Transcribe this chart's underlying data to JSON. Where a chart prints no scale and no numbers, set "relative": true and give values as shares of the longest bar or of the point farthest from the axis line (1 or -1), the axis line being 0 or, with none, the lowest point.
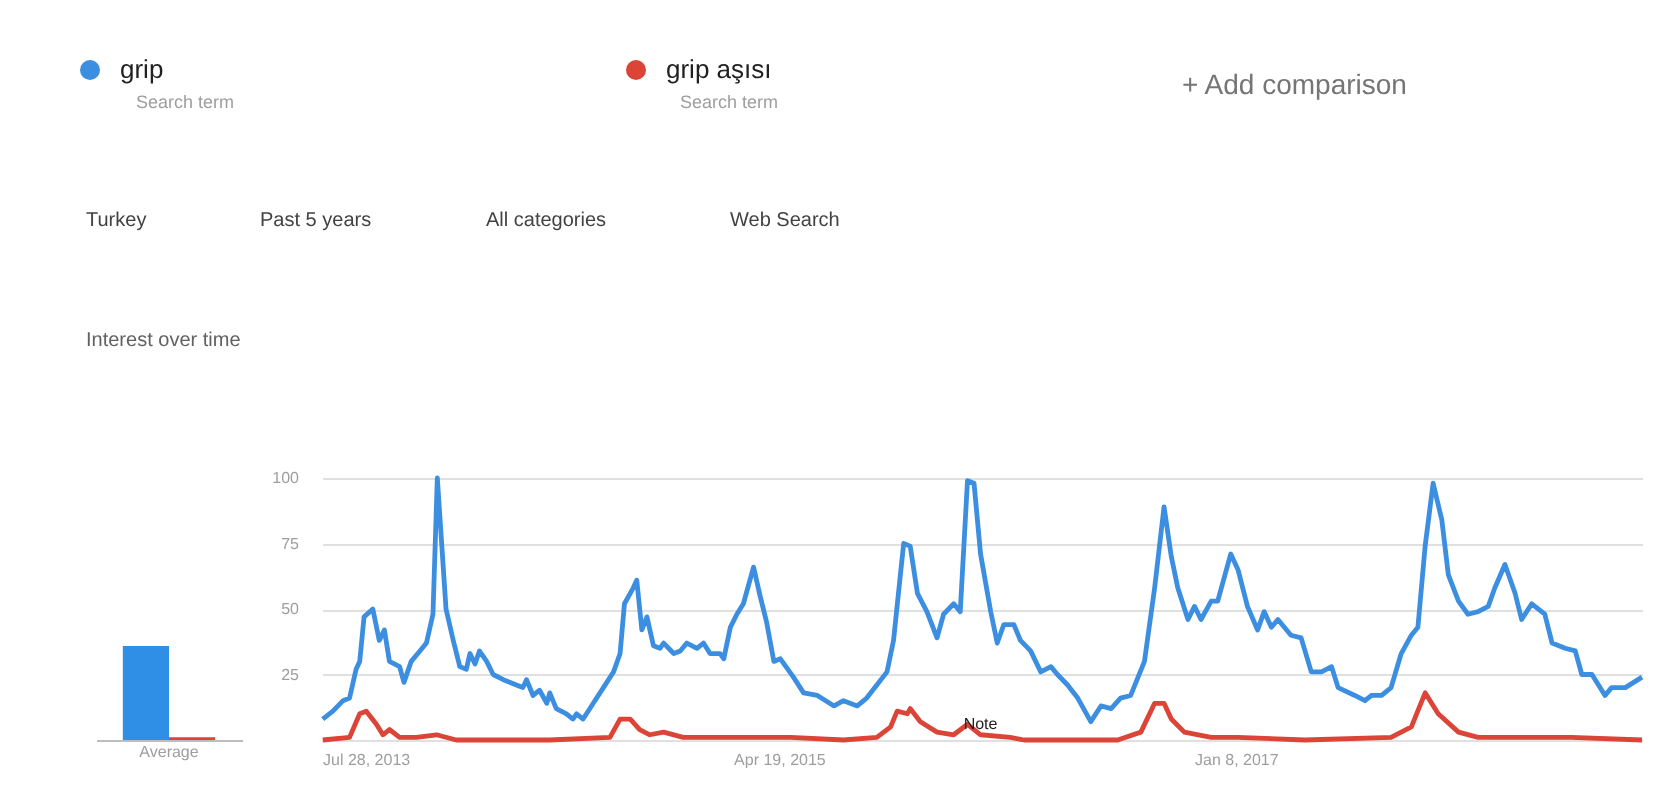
{
  "chart_data": [
    {
      "type": "bar",
      "relative": true,
      "categories": [
        "Average"
      ],
      "series": [
        {
          "color": "#2f8fe6",
          "values": [
            1
          ]
        },
        {
          "color": "#db4437",
          "values": [
            0.03
          ]
        }
      ]
    },
    {
      "type": "line",
      "title": "Interest over time",
      "legend": "top",
      "grid": "y",
      "marker": "none",
      "line_style": "solid",
      "xlim": [
        "2013-07-28",
        "2018-07-22"
      ],
      "xticks": [
        {
          "value": "2013-07-28",
          "label": "Jul 28, 2013"
        },
        {
          "value": "2015-04-19",
          "label": "Apr 19, 2015"
        },
        {
          "value": "2017-01-08",
          "label": "Jan 8, 2017"
        }
      ],
      "ylim": [
        0,
        100
      ],
      "yticks": [
        {
          "value": 0,
          "label": null
        },
        25,
        50,
        75,
        100
      ],
      "annotations": [
        "Search term",
        "Search term",
        "+ Add comparison",
        "Turkey",
        "Past 5 years",
        "All categories",
        "Web Search",
        {
          "text": "Note",
          "x": "2016-01-22",
          "y": 2
        }
      ],
      "series": [
        {
          "name": "grip",
          "color": "#3b8ee0",
          "x": [
            "2013-07-29",
            "2013-08-12",
            "2013-08-26",
            "2013-09-04",
            "2013-09-13",
            "2013-09-18",
            "2013-09-24",
            "2013-10-06",
            "2013-10-15",
            "2013-10-22",
            "2013-10-29",
            "2013-11-12",
            "2013-11-18",
            "2013-11-28",
            "2013-12-10",
            "2013-12-19",
            "2013-12-28",
            "2014-01-03",
            "2014-01-15",
            "2014-01-25",
            "2014-02-03",
            "2014-02-12",
            "2014-02-17",
            "2014-02-24",
            "2014-03-02",
            "2014-03-12",
            "2014-03-21",
            "2014-04-04",
            "2014-04-22",
            "2014-05-01",
            "2014-05-06",
            "2014-05-15",
            "2014-05-24",
            "2014-06-03",
            "2014-06-07",
            "2014-06-16",
            "2014-06-30",
            "2014-07-09",
            "2014-07-14",
            "2014-07-23",
            "2014-08-06",
            "2014-08-20",
            "2014-09-03",
            "2014-09-12",
            "2014-09-18",
            "2014-09-30",
            "2014-10-05",
            "2014-10-12",
            "2014-10-19",
            "2014-10-28",
            "2014-11-06",
            "2014-11-11",
            "2014-11-25",
            "2014-12-04",
            "2014-12-13",
            "2014-12-27",
            "2015-01-05",
            "2015-01-14",
            "2015-01-28",
            "2015-02-02",
            "2015-02-11",
            "2015-02-20",
            "2015-03-01",
            "2015-03-15",
            "2015-03-24",
            "2015-04-02",
            "2015-04-12",
            "2015-04-21",
            "2015-05-09",
            "2015-05-23",
            "2015-06-11",
            "2015-07-04",
            "2015-07-17",
            "2015-08-05",
            "2015-08-18",
            "2015-09-01",
            "2015-09-15",
            "2015-09-24",
            "2015-10-08",
            "2015-10-17",
            "2015-10-27",
            "2015-11-09",
            "2015-11-23",
            "2015-12-02",
            "2015-12-16",
            "2015-12-25",
            "2016-01-04",
            "2016-01-13",
            "2016-01-22",
            "2016-02-05",
            "2016-02-14",
            "2016-02-23",
            "2016-03-08",
            "2016-03-17",
            "2016-03-31",
            "2016-04-14",
            "2016-04-28",
            "2016-05-07",
            "2016-05-21",
            "2016-06-04",
            "2016-06-22",
            "2016-07-06",
            "2016-07-20",
            "2016-08-02",
            "2016-08-16",
            "2016-09-04",
            "2016-09-18",
            "2016-10-01",
            "2016-10-11",
            "2016-10-20",
            "2016-11-03",
            "2016-11-12",
            "2016-11-21",
            "2016-12-05",
            "2016-12-14",
            "2017-01-01",
            "2017-01-11",
            "2017-01-24",
            "2017-02-07",
            "2017-02-16",
            "2017-02-26",
            "2017-03-07",
            "2017-03-25",
            "2017-04-08",
            "2017-04-22",
            "2017-05-06",
            "2017-05-20",
            "2017-05-29",
            "2017-06-21",
            "2017-07-05",
            "2017-07-14",
            "2017-07-28",
            "2017-08-10",
            "2017-08-24",
            "2017-09-07",
            "2017-09-16",
            "2017-09-26",
            "2017-10-07",
            "2017-10-19",
            "2017-10-28",
            "2017-11-11",
            "2017-11-24",
            "2017-12-08",
            "2017-12-22",
            "2017-12-31",
            "2018-01-14",
            "2018-01-28",
            "2018-02-06",
            "2018-02-20",
            "2018-03-10",
            "2018-03-20",
            "2018-04-07",
            "2018-04-21",
            "2018-04-30",
            "2018-05-14",
            "2018-06-01",
            "2018-06-10",
            "2018-06-29",
            "2018-07-22"
          ],
          "values": [
            8,
            11,
            15,
            16,
            27,
            30,
            47,
            50,
            38,
            42,
            30,
            28,
            22,
            30,
            34,
            37,
            48,
            100,
            50,
            38,
            28,
            27,
            33,
            29,
            34,
            30,
            25,
            23,
            21,
            20,
            23,
            17,
            19,
            14,
            18,
            12,
            10,
            8,
            10,
            8,
            14,
            20,
            26,
            33,
            52,
            58,
            61,
            42,
            47,
            36,
            35,
            37,
            33,
            34,
            37,
            35,
            37,
            33,
            33,
            31,
            43,
            48,
            52,
            66,
            55,
            45,
            30,
            31,
            24,
            18,
            17,
            13,
            15,
            13,
            16,
            21,
            26,
            38,
            75,
            74,
            56,
            49,
            39,
            48,
            52,
            49,
            99,
            98,
            71,
            49,
            37,
            44,
            44,
            38,
            34,
            26,
            28,
            25,
            21,
            16,
            7,
            13,
            12,
            16,
            17,
            30,
            58,
            89,
            70,
            58,
            46,
            51,
            46,
            53,
            53,
            71,
            65,
            51,
            42,
            49,
            43,
            46,
            40,
            39,
            26,
            26,
            28,
            20,
            17,
            15,
            17,
            17,
            20,
            33,
            40,
            43,
            74,
            98,
            84,
            63,
            53,
            48,
            49,
            51,
            58,
            67,
            56,
            46,
            52,
            48,
            37,
            35,
            34,
            25,
            25,
            17,
            20,
            20,
            24
          ]
        },
        {
          "name": "grip aşısı",
          "color": "#db4437",
          "x": [
            "2013-07-29",
            "2013-09-04",
            "2013-09-18",
            "2013-09-27",
            "2013-10-11",
            "2013-10-20",
            "2013-10-29",
            "2013-11-12",
            "2013-12-05",
            "2014-01-02",
            "2014-01-29",
            "2014-06-07",
            "2014-08-29",
            "2014-09-12",
            "2014-09-26",
            "2014-10-09",
            "2014-10-23",
            "2014-11-11",
            "2014-12-08",
            "2015-02-11",
            "2015-03-10",
            "2015-05-05",
            "2015-07-17",
            "2015-09-01",
            "2015-09-20",
            "2015-09-29",
            "2015-10-13",
            "2015-10-17",
            "2015-10-31",
            "2015-11-23",
            "2015-12-16",
            "2016-01-04",
            "2016-01-22",
            "2016-03-03",
            "2016-03-22",
            "2016-07-29",
            "2016-08-30",
            "2016-09-18",
            "2016-10-01",
            "2016-10-11",
            "2016-10-29",
            "2016-12-05",
            "2017-01-11",
            "2017-04-13",
            "2017-08-10",
            "2017-09-07",
            "2017-09-26",
            "2017-10-14",
            "2017-11-11",
            "2017-12-08",
            "2018-01-14",
            "2018-04-16",
            "2018-07-22"
          ],
          "values": [
            0,
            1,
            10,
            11,
            6,
            2,
            4,
            1,
            1,
            2,
            0,
            0,
            1,
            8,
            8,
            4,
            2,
            3,
            1,
            1,
            1,
            1,
            0,
            1,
            5,
            11,
            10,
            12,
            7,
            3,
            2,
            6,
            2,
            1,
            0,
            0,
            3,
            14,
            14,
            8,
            3,
            1,
            1,
            0,
            1,
            5,
            18,
            10,
            3,
            1,
            1,
            1,
            0
          ]
        }
      ]
    }
  ]
}
